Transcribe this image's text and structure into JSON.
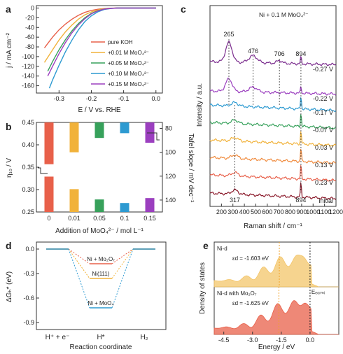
{
  "panel_labels": [
    "a",
    "b",
    "c",
    "d",
    "e"
  ],
  "chart_data": [
    {
      "panel": "a",
      "type": "line",
      "xlabel": "E / V vs. RHE",
      "ylabel": "j / mA cm⁻²",
      "xlim": [
        -0.37,
        0.02
      ],
      "ylim": [
        -175,
        5
      ],
      "xticks": [
        -0.3,
        -0.2,
        -0.1,
        0.0
      ],
      "yticks": [
        0,
        -20,
        -40,
        -60,
        -80,
        -100,
        -120,
        -140,
        -160
      ],
      "legend_position": "bottom-right",
      "series": [
        {
          "name": "pure KOH",
          "color": "#e8604a",
          "x": [
            -0.345,
            -0.32,
            -0.3,
            -0.28,
            -0.26,
            -0.24,
            -0.22,
            -0.2,
            -0.18,
            -0.16,
            -0.14,
            -0.12,
            -0.1,
            -0.05,
            0.0
          ],
          "y": [
            -82,
            -60,
            -45,
            -33,
            -23,
            -15,
            -9,
            -5,
            -2.5,
            -1,
            -0.3,
            0,
            0,
            0,
            0
          ]
        },
        {
          "name": "+0.01 M MoO₄²⁻",
          "color": "#f1b23a",
          "x": [
            -0.345,
            -0.32,
            -0.3,
            -0.28,
            -0.26,
            -0.24,
            -0.22,
            -0.2,
            -0.18,
            -0.16,
            -0.14,
            -0.12,
            -0.1,
            -0.05,
            0.0
          ],
          "y": [
            -112,
            -86,
            -66,
            -49,
            -35,
            -23,
            -14,
            -8,
            -4,
            -1.5,
            -0.5,
            0,
            0,
            0,
            0
          ]
        },
        {
          "name": "+0.05 M MoO₄²⁻",
          "color": "#37a15b",
          "x": [
            -0.335,
            -0.32,
            -0.3,
            -0.28,
            -0.26,
            -0.24,
            -0.22,
            -0.2,
            -0.18,
            -0.16,
            -0.14,
            -0.12,
            -0.1,
            -0.05,
            0.0
          ],
          "y": [
            -130,
            -110,
            -86,
            -65,
            -47,
            -32,
            -20,
            -11,
            -5.5,
            -2,
            -0.6,
            0,
            0,
            0,
            0
          ]
        },
        {
          "name": "+0.10 M MoO₄²⁻",
          "color": "#2d9ad1",
          "x": [
            -0.33,
            -0.32,
            -0.3,
            -0.28,
            -0.26,
            -0.24,
            -0.22,
            -0.2,
            -0.18,
            -0.16,
            -0.14,
            -0.12,
            -0.1,
            -0.05,
            0.0
          ],
          "y": [
            -165,
            -148,
            -118,
            -90,
            -66,
            -45,
            -28,
            -16,
            -8,
            -3,
            -1,
            0,
            0,
            0,
            0
          ]
        },
        {
          "name": "+0.15 M MoO₄²⁻",
          "color": "#9b3fbf",
          "x": [
            -0.335,
            -0.32,
            -0.3,
            -0.28,
            -0.26,
            -0.24,
            -0.22,
            -0.2,
            -0.18,
            -0.16,
            -0.14,
            -0.12,
            -0.1,
            -0.05,
            0.0
          ],
          "y": [
            -140,
            -120,
            -94,
            -71,
            -51,
            -35,
            -22,
            -12,
            -6,
            -2.3,
            -0.7,
            0,
            0,
            0,
            0
          ]
        }
      ]
    },
    {
      "panel": "b",
      "type": "bar",
      "xlabel": "Addition of MoO₄²⁻ / mol L⁻¹",
      "ylabel": "η₁₀ / V",
      "y2label": "Tafel slope / mV dec⁻¹",
      "categories": [
        "0",
        "0.01",
        "0.05",
        "0.1",
        "0.15"
      ],
      "colors": [
        "#e8604a",
        "#f1b23a",
        "#37a15b",
        "#2d9ad1",
        "#9b3fbf"
      ],
      "ylim": [
        0.25,
        0.45
      ],
      "yticks": [
        0.25,
        0.3,
        0.35,
        0.4,
        0.45
      ],
      "y2lim": [
        150,
        75
      ],
      "y2ticks": [
        80,
        100,
        120,
        140
      ],
      "series": [
        {
          "name": "eta10",
          "axis": "left",
          "values": [
            0.329,
            0.301,
            0.278,
            0.27,
            0.281
          ]
        },
        {
          "name": "Tafel",
          "axis": "right",
          "values": [
            110,
            100,
            88,
            84,
            92
          ]
        }
      ]
    },
    {
      "panel": "c",
      "type": "line",
      "title": "Ni + 0.1 M MoO₄²⁻",
      "xlabel": "Raman shift / cm⁻¹",
      "ylabel": "Intensity / a.u.",
      "xlim": [
        100,
        1200
      ],
      "xticks": [
        200,
        300,
        400,
        500,
        600,
        700,
        800,
        900,
        1000,
        1100,
        1200
      ],
      "peaks": [
        265,
        476,
        706,
        894
      ],
      "peaks_bottom": [
        317,
        894
      ],
      "series": [
        {
          "name": "-0.27 V",
          "color": "#7b2d8e"
        },
        {
          "name": "-0.22 V",
          "color": "#9b3fbf"
        },
        {
          "name": "-0.17 V",
          "color": "#2d9ad1"
        },
        {
          "name": "-0.07 V",
          "color": "#37a15b"
        },
        {
          "name": "0.03 V",
          "color": "#f1b23a"
        },
        {
          "name": "0.13 V",
          "color": "#f08a3c"
        },
        {
          "name": "0.23 V",
          "color": "#e8604a"
        },
        {
          "name": "initial",
          "color": "#8b1a2b"
        }
      ]
    },
    {
      "panel": "d",
      "type": "line",
      "xlabel": "Reaction coordinate",
      "ylabel": "ΔGₕ* (eV)",
      "ylim": [
        -0.9,
        0.0
      ],
      "yticks": [
        0.0,
        -0.3,
        -0.6,
        -0.9
      ],
      "categories": [
        "H⁺ + e⁻",
        "H*",
        "H₂"
      ],
      "series": [
        {
          "name": "Ni + Mo₂O₇",
          "color": "#e8604a",
          "values": [
            0,
            -0.18,
            0
          ]
        },
        {
          "name": "Ni(111)",
          "color": "#f1b23a",
          "values": [
            0,
            -0.36,
            0
          ]
        },
        {
          "name": "Ni + MoO₄",
          "color": "#2d9ad1",
          "values": [
            0,
            -0.72,
            0
          ]
        }
      ]
    },
    {
      "panel": "e",
      "type": "area",
      "xlabel": "Energy / eV",
      "ylabel": "Density of states",
      "xlim": [
        -5.0,
        1.5
      ],
      "xticks": [
        "-4.5",
        "-3.0",
        "-1.5",
        "0.0"
      ],
      "efermi_label": "Eₑₒᵣₘᵢ",
      "series": [
        {
          "name": "Ni-d",
          "color": "#f3c56a",
          "center_label": "εd = -1.603 eV",
          "center": -1.603
        },
        {
          "name": "Ni-d with Mo₂O₇",
          "color": "#e8604a",
          "center_label": "εd = -1.625 eV",
          "center": -1.625
        }
      ]
    }
  ]
}
